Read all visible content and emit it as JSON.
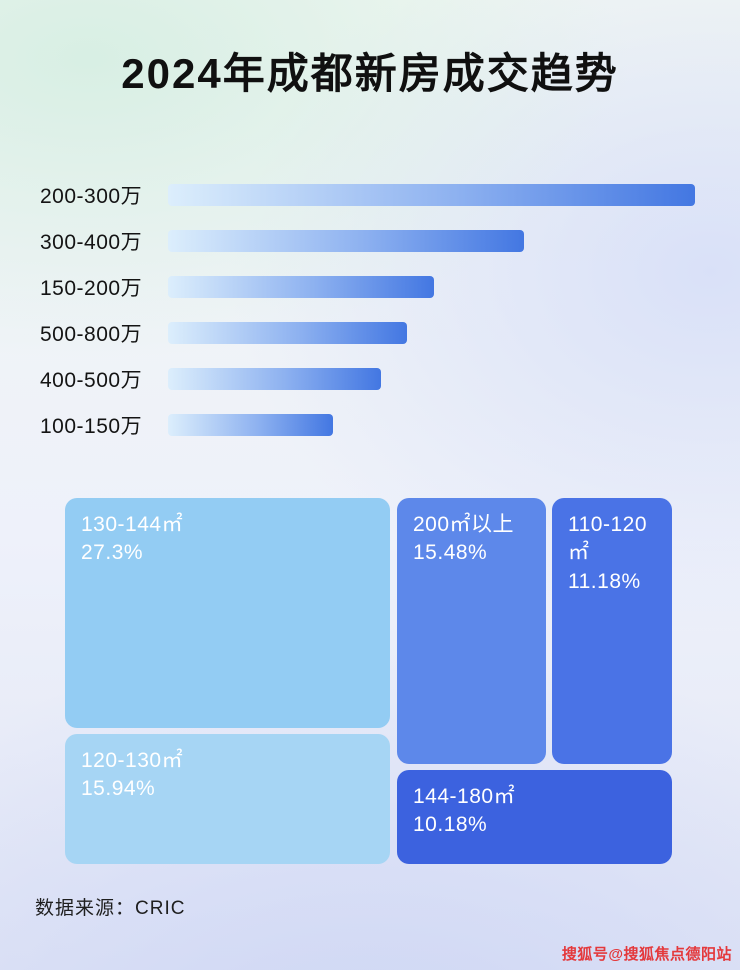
{
  "page": {
    "title": "2024年成都新房成交趋势",
    "source_label": "数据来源：CRIC",
    "watermark": "搜狐号@搜狐焦点德阳站"
  },
  "colors": {
    "bar_gradient_start": "#dceefc",
    "bar_gradient_end": "#4377e2",
    "watermark_red": "#e4393c",
    "title_color": "#101010"
  },
  "chart_data": [
    {
      "type": "bar",
      "title": "2024年成都新房成交趋势",
      "orientation": "horizontal",
      "categories": [
        "200-300万",
        "300-400万",
        "150-200万",
        "500-800万",
        "400-500万",
        "100-150万"
      ],
      "values": [
        99,
        67,
        50,
        45,
        40,
        31
      ],
      "note": "no numeric axis shown; values are relative bar lengths in % of track width",
      "xlabel": "",
      "ylabel": "",
      "grid": false,
      "legend": false
    },
    {
      "type": "treemap",
      "items": [
        {
          "label": "130-144㎡",
          "value": 27.3,
          "display": "27.3%",
          "color": "#93ccf3"
        },
        {
          "label": "200㎡以上",
          "value": 15.48,
          "display": "15.48%",
          "color": "#5d88ea"
        },
        {
          "label": "110-120㎡",
          "value": 11.18,
          "display": "11.18%",
          "color": "#4a73e6"
        },
        {
          "label": "120-130㎡",
          "value": 15.94,
          "display": "15.94%",
          "color": "#a6d5f4"
        },
        {
          "label": "144-180㎡",
          "value": 10.18,
          "display": "10.18%",
          "color": "#3c62df"
        }
      ]
    }
  ]
}
